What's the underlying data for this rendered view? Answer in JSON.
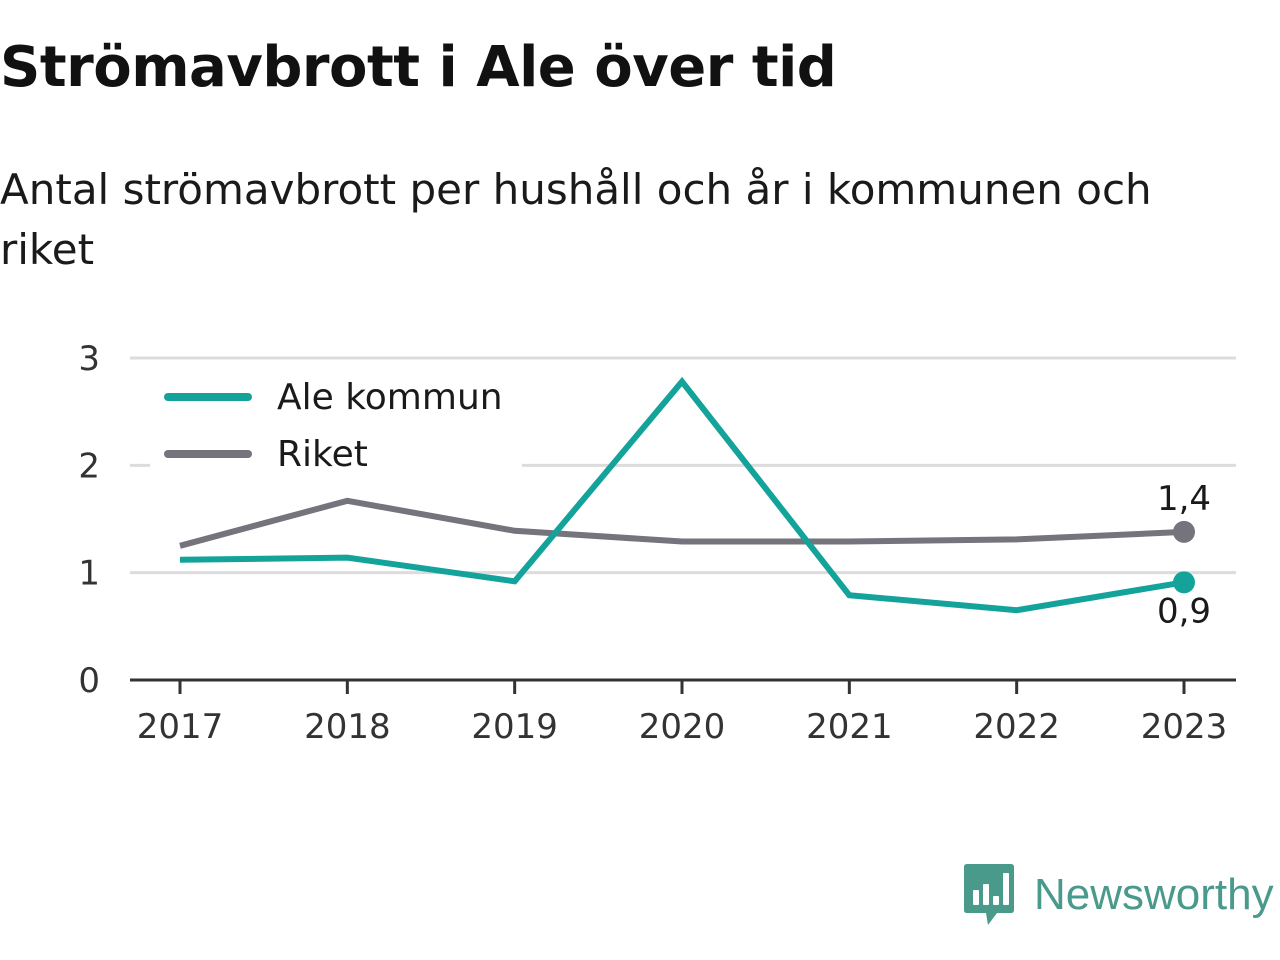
{
  "header": {
    "title": "Strömavbrott i Ale över tid",
    "subtitle": "Antal strömavbrott per hushåll och år i kommunen och riket"
  },
  "chart_data": {
    "type": "line",
    "x": [
      "2017",
      "2018",
      "2019",
      "2020",
      "2021",
      "2022",
      "2023"
    ],
    "ylim": [
      0,
      3
    ],
    "yticks": [
      "0",
      "1",
      "2",
      "3"
    ],
    "grid": true,
    "legend_position": "top-left",
    "series": [
      {
        "name": "Ale kommun",
        "color": "#14a39a",
        "values": [
          1.12,
          1.14,
          0.92,
          2.78,
          0.79,
          0.65,
          0.91
        ],
        "end_label": "0,9"
      },
      {
        "name": "Riket",
        "color": "#75737c",
        "values": [
          1.25,
          1.67,
          1.39,
          1.29,
          1.29,
          1.31,
          1.38
        ],
        "end_label": "1,4"
      }
    ]
  },
  "branding": {
    "name": "Newsworthy",
    "icon": "newsworthy-logo-icon",
    "color": "#4a9a8c"
  }
}
